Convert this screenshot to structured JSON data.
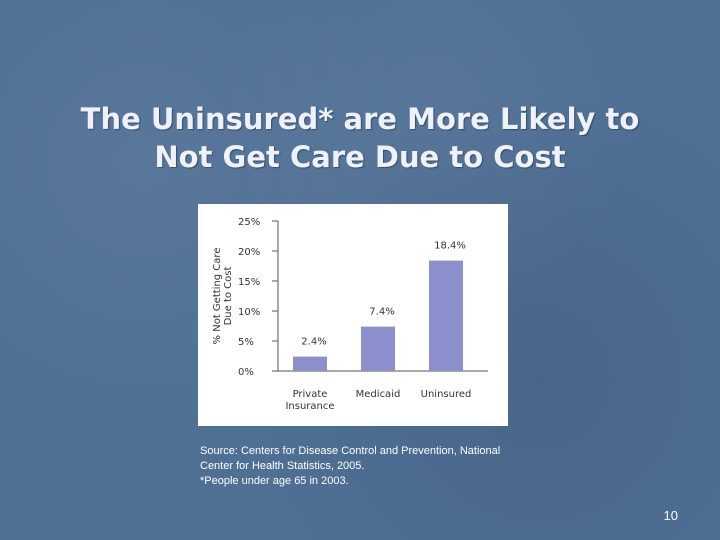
{
  "slide": {
    "title_line1": "The Uninsured* are More Likely to",
    "title_line2": "Not Get Care Due to Cost",
    "source_line1": "Source:  Centers for Disease Control and Prevention, National",
    "source_line2": "Center for Health Statistics, 2005.",
    "footnote": "*People under age 65 in 2003.",
    "page_number": "10",
    "background_color": "#4f6f95"
  },
  "chart_data": {
    "type": "bar",
    "categories": [
      [
        "Private",
        "Insurance"
      ],
      [
        "Medicaid"
      ],
      [
        "Uninsured"
      ]
    ],
    "values": [
      2.4,
      7.4,
      18.4
    ],
    "data_labels": [
      "2.4%",
      "7.4%",
      "18.4%"
    ],
    "ylabel_lines": [
      "% Not Getting Care",
      "Due to Cost"
    ],
    "yticks": [
      0,
      5,
      10,
      15,
      20,
      25
    ],
    "ytick_labels": [
      "0%",
      "5%",
      "10%",
      "15%",
      "20%",
      "25%"
    ],
    "ylim": [
      0,
      25
    ],
    "grid": false,
    "bar_color": "#8b8fcb"
  }
}
